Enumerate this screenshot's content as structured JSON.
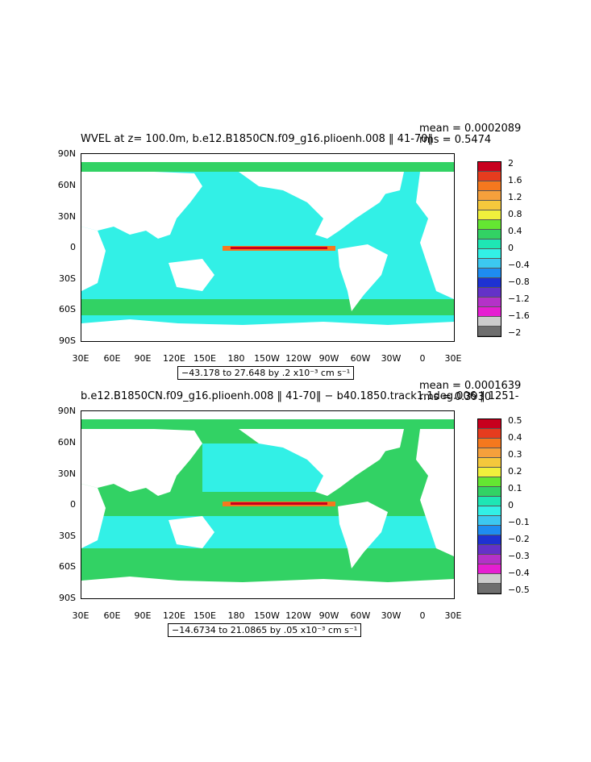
{
  "panel1": {
    "title": "WVEL at z= 100.0m, b.e12.B1850CN.f09_g16.plioenh.008 ‖ 41-70‖",
    "mean": "mean = 0.0002089",
    "rms": "rms = 0.5474",
    "range": "−43.178 to 27.648 by .2 x10⁻³ cm s⁻¹",
    "colorbar_labels": [
      "2",
      "1.6",
      "1.2",
      "0.8",
      "0.4",
      "0",
      "−0.4",
      "−0.8",
      "−1.2",
      "−1.6",
      "−2"
    ],
    "colorbar_colors": [
      "#c8001e",
      "#e63c1e",
      "#f5781e",
      "#f5a03c",
      "#f5c83c",
      "#f0f03c",
      "#64e632",
      "#32d264",
      "#1ee6b4",
      "#32f0e6",
      "#3cc8f0",
      "#1e8cf0",
      "#1e32d2",
      "#6432c8",
      "#b432c8",
      "#e61ed2",
      "#cccccc",
      "#6e6e6e"
    ]
  },
  "panel2": {
    "title": "b.e12.B1850CN.f09_g16.plioenh.008 ‖ 41-70‖ − b40.1850.track1.1deg.006 ‖ 1251-",
    "mean": "mean = 0.0001639",
    "rms": "rms = 0.3930",
    "range": "−14.6734 to 21.0865 by .05 x10⁻³ cm s⁻¹",
    "colorbar_labels": [
      "0.5",
      "0.4",
      "0.3",
      "0.2",
      "0.1",
      "0",
      "−0.1",
      "−0.2",
      "−0.3",
      "−0.4",
      "−0.5"
    ],
    "colorbar_colors": [
      "#c8001e",
      "#e63c1e",
      "#f5781e",
      "#f5a03c",
      "#f5c83c",
      "#f0f03c",
      "#64e632",
      "#32d264",
      "#1ee6b4",
      "#32f0e6",
      "#3cc8f0",
      "#1e8cf0",
      "#1e32d2",
      "#6432c8",
      "#b432c8",
      "#e61ed2",
      "#cccccc",
      "#6e6e6e"
    ]
  },
  "axes": {
    "y_labels": [
      "90N",
      "60N",
      "30N",
      "0",
      "30S",
      "60S",
      "90S"
    ],
    "x_labels": [
      "30E",
      "60E",
      "90E",
      "120E",
      "150E",
      "180",
      "150W",
      "120W",
      "90W",
      "60W",
      "30W",
      "0",
      "30E"
    ]
  },
  "colors": {
    "ocean_base": "#32f0e6",
    "ocean_band": "#32d264",
    "equator_core": "#c8001e",
    "equator_edge": "#f5781e",
    "land": "#ffffff"
  }
}
